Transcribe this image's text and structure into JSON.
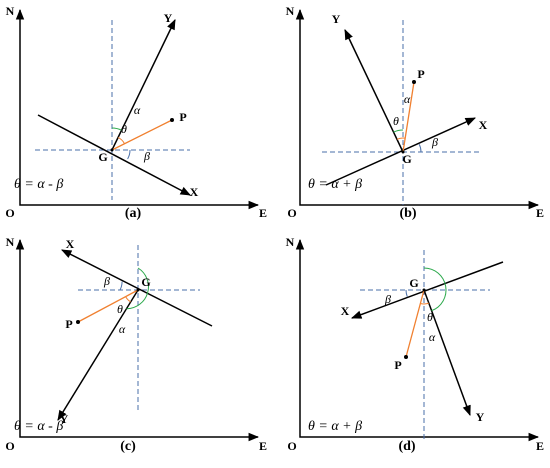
{
  "panels": [
    {
      "n": "N",
      "o": "O",
      "e": "E",
      "x": "X",
      "y": "Y",
      "g": "G",
      "p": "P",
      "alpha": "α",
      "beta": "β",
      "theta": "θ",
      "formula": "θ = α - β",
      "caption": "(a)"
    },
    {
      "n": "N",
      "o": "O",
      "e": "E",
      "x": "X",
      "y": "Y",
      "g": "G",
      "p": "P",
      "alpha": "α",
      "beta": "β",
      "theta": "θ",
      "formula": "θ = α + β",
      "caption": "(b)"
    },
    {
      "n": "N",
      "o": "O",
      "e": "E",
      "x": "X",
      "y": "Y",
      "g": "G",
      "p": "P",
      "alpha": "α",
      "beta": "β",
      "theta": "θ",
      "formula": "θ = α - β",
      "caption": "(c)"
    },
    {
      "n": "N",
      "o": "O",
      "e": "E",
      "x": "X",
      "y": "Y",
      "g": "G",
      "p": "P",
      "alpha": "α",
      "beta": "β",
      "theta": "θ",
      "formula": "θ = α + β",
      "caption": "(d)"
    }
  ]
}
